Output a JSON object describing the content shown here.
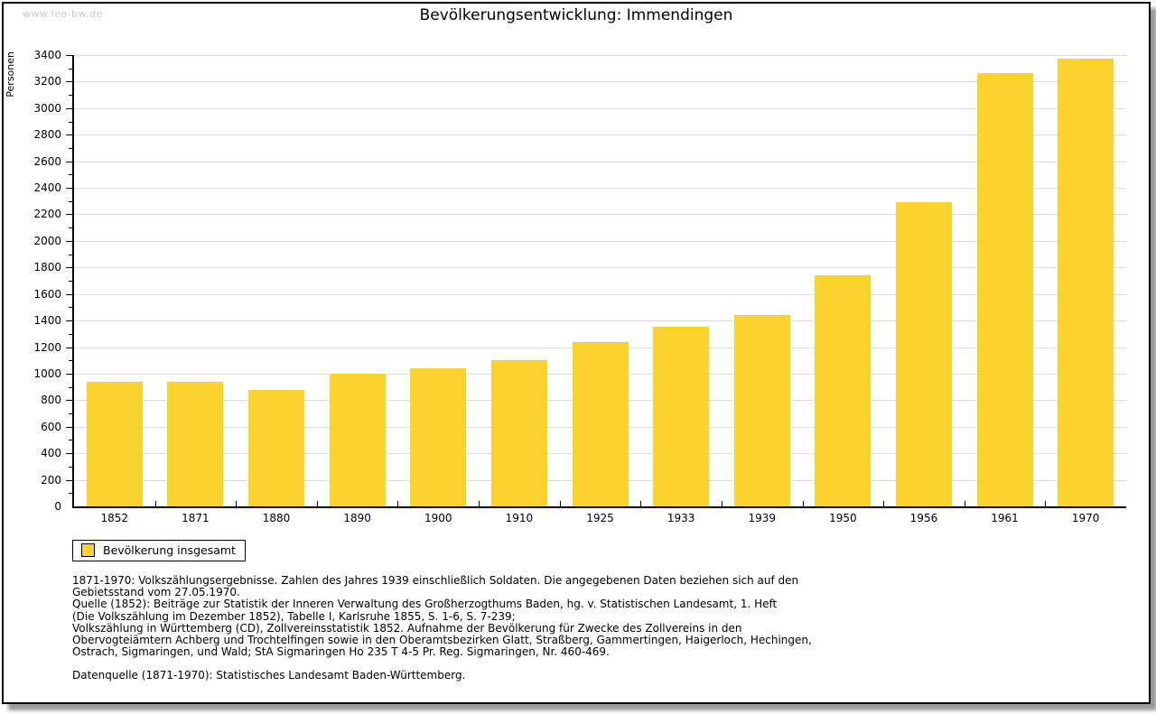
{
  "watermark": "www.leo-bw.de",
  "title": "Bevölkerungsentwicklung: Immendingen",
  "legend": {
    "label": "Bevölkerung insgesamt"
  },
  "colors": {
    "bar": "#FCD32D",
    "grid": "#DEDEDE",
    "axis": "#000000",
    "watermark": "#C9C9C9"
  },
  "chart_data": {
    "type": "bar",
    "title": "Bevölkerungsentwicklung: Immendingen",
    "categories": [
      "1852",
      "1871",
      "1880",
      "1890",
      "1900",
      "1910",
      "1925",
      "1933",
      "1939",
      "1950",
      "1956",
      "1961",
      "1970"
    ],
    "values": [
      940,
      940,
      880,
      1000,
      1040,
      1105,
      1240,
      1355,
      1445,
      1740,
      2290,
      3265,
      3375
    ],
    "xlabel": "",
    "ylabel": "Personen",
    "ylim": [
      0,
      3400
    ],
    "ytick_step": 200,
    "minor_tick_step": 100,
    "grid": true,
    "legend": [
      "Bevölkerung insgesamt"
    ],
    "legend_position": "bottom-left"
  },
  "footnotes": [
    "1871-1970: Volkszählungsergebnisse. Zahlen des Jahres 1939 einschließlich Soldaten. Die angegebenen Daten beziehen sich auf den",
    "Gebietsstand vom 27.05.1970.",
    "Quelle (1852): Beiträge zur Statistik der Inneren Verwaltung des Großherzogthums Baden, hg. v. Statistischen Landesamt, 1. Heft",
    "(Die Volkszählung im Dezember 1852), Tabelle I, Karlsruhe 1855, S. 1-6, S. 7-239;",
    "Volkszählung in Württemberg (CD), Zollvereinsstatistik 1852. Aufnahme der Bevölkerung für Zwecke des Zollvereins in den",
    "Obervogteiämtern Achberg und Trochtelfingen sowie in den Oberamtsbezirken Glatt, Straßberg, Gammertingen, Haigerloch, Hechingen,",
    "Ostrach, Sigmaringen, und Wald; StA Sigmaringen Ho 235 T 4-5 Pr. Reg. Sigmaringen, Nr. 460-469."
  ],
  "source_line": "Datenquelle (1871-1970): Statistisches Landesamt Baden-Württemberg."
}
